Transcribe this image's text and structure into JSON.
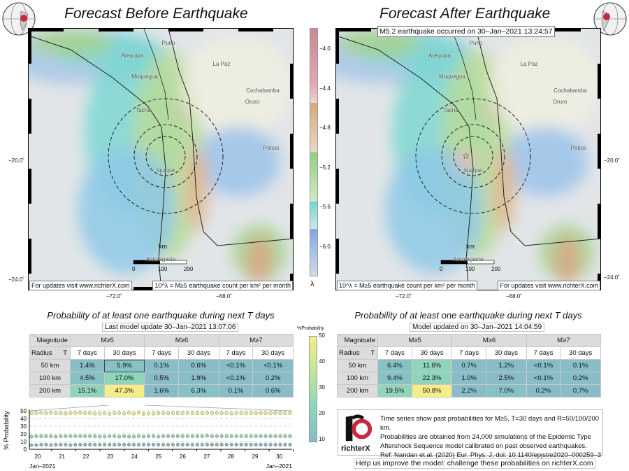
{
  "maps": [
    {
      "title": "Forecast Before Earthquake",
      "footer_left": "For updates visit www.richterX.com",
      "footer_right": "10^λ = M≥5 earthquake count per km² per month",
      "event_label": null,
      "has_star": false
    },
    {
      "title": "Forecast After Earthquake",
      "footer_left": "10^λ = M≥5 earthquake count per km² per month",
      "footer_right": "For updates visit www.richterX.com",
      "event_label": "M5.2 earthquake occurred on 30–Jan–2021 13:24:57",
      "has_star": true
    }
  ],
  "cities": [
    "Puno",
    "Arequipa",
    "La Paz",
    "Moquegua",
    "Cochabamba",
    "Tacna",
    "Oruro",
    "Potosí",
    "Iquique",
    "Antofagasta"
  ],
  "scale": {
    "unit": "km",
    "ticks": [
      "0",
      "100",
      "200"
    ]
  },
  "axes": {
    "lon_ticks": [
      "−72.0˚",
      "−68.0˚"
    ],
    "lat_ticks": [
      "−20.0˚",
      "−24.0˚"
    ]
  },
  "colorbar": {
    "symbol": "λ",
    "ticks": [
      "−4.0",
      "−4.4",
      "−4.8",
      "−5.2",
      "−5.6",
      "−6.0"
    ]
  },
  "prob_colorbar": {
    "title": "%Probability",
    "ticks": [
      "50",
      "40",
      "30",
      "20",
      "10"
    ]
  },
  "tables": [
    {
      "title": "Probability of at least one earthquake during next T days",
      "updated": "Last model update 30–Jan–2021 13:07:06",
      "rows": [
        [
          "50 km",
          "1.4%",
          "5.9%",
          "0.1%",
          "0.6%",
          "<0.1%",
          "<0.1%"
        ],
        [
          "100 km",
          "4.5%",
          "17.0%",
          "0.5%",
          "1.9%",
          "<0.1%",
          "0.2%"
        ],
        [
          "200 km",
          "15.1%",
          "47.3%",
          "1.6%",
          "6.3%",
          "0.1%",
          "0.6%"
        ]
      ]
    },
    {
      "title": "Probability of at least one earthquake during next T days",
      "updated": "Model updated on 30–Jan–2021 14:04:59",
      "rows": [
        [
          "50 km",
          "6.4%",
          "11.6%",
          "0.7%",
          "1.2%",
          "<0.1%",
          "0.1%"
        ],
        [
          "100 km",
          "9.4%",
          "22.3%",
          "1.0%",
          "2.5%",
          "<0.1%",
          "0.2%"
        ],
        [
          "200 km",
          "19.5%",
          "50.8%",
          "2.2%",
          "7.0%",
          "0.2%",
          "0.7%"
        ]
      ]
    }
  ],
  "table_headers": {
    "magnitude": "Magnitude",
    "radius": "Radius",
    "t": "T",
    "mags": [
      "M≥5",
      "M≥6",
      "M≥7"
    ],
    "periods": [
      "7 days",
      "30 days",
      "7 days",
      "30 days",
      "7 days",
      "30 days"
    ]
  },
  "chart_data": {
    "type": "scatter",
    "ylabel": "% Probability",
    "ylim": [
      0,
      50
    ],
    "yticks": [
      "0",
      "10",
      "20",
      "30",
      "40",
      "50"
    ],
    "xticks": [
      "20",
      "21",
      "22",
      "23",
      "24",
      "25",
      "26",
      "27",
      "28",
      "29",
      "30"
    ],
    "xlabel_left": "Jan–2021",
    "xlabel_right": "Jan–2021",
    "series": [
      {
        "name": "R=200 km",
        "color": "#f0ec80",
        "values": [
          47,
          47,
          47.5,
          47,
          47.5,
          47,
          47,
          46.5,
          47,
          47,
          47.5,
          47,
          47,
          46.5,
          46.5,
          47,
          46,
          47,
          47,
          46.5,
          47.5,
          46.5,
          47.5,
          46,
          46.5,
          46.5,
          47,
          47,
          47,
          47,
          47,
          47,
          47,
          47,
          47,
          47,
          47,
          47,
          47,
          47,
          47,
          46.5,
          47,
          47,
          47,
          47,
          47,
          47,
          47,
          47,
          47,
          47,
          47,
          47.3
        ]
      },
      {
        "name": "R=100 km",
        "color": "#8fd4b8",
        "values": [
          16.5,
          17,
          17,
          17,
          17,
          16.5,
          17,
          17,
          17,
          17,
          17,
          17,
          17,
          17,
          16.5,
          16.5,
          17,
          17,
          16.5,
          17,
          16.5,
          16.5,
          17,
          16.5,
          17,
          17,
          16.5,
          17,
          17,
          17,
          17,
          17,
          17,
          17,
          17,
          17,
          17.5,
          17,
          17,
          17,
          17,
          17,
          17,
          17,
          17,
          17,
          17,
          17,
          17,
          17,
          17,
          17,
          17,
          17
        ]
      },
      {
        "name": "R=50 km",
        "color": "#7fbcc0",
        "values": [
          5.5,
          5.5,
          6,
          6,
          5.5,
          6,
          6,
          6,
          5.5,
          6,
          6,
          6,
          6,
          6,
          6,
          6,
          6,
          6,
          6,
          6,
          6,
          6,
          6,
          6,
          6,
          6,
          6,
          6,
          6,
          6,
          6,
          6,
          6,
          6,
          6,
          6,
          6,
          6,
          6,
          6,
          6,
          6,
          6,
          6,
          6,
          6,
          6,
          6,
          6,
          6,
          6,
          6,
          6,
          5.9
        ]
      }
    ]
  },
  "info": {
    "logo_text": "richterX",
    "lines": [
      "Time series show past probabilities for M≥5, T=30 days and R=50/100/200 km.",
      "Probabilities are obtained from 24,000 simulations of the Epidemic Type",
      "Aftershock Sequence model calibrated on past observed earthquakes.",
      "Ref: Nandan et.al. (2020) Eur. Phys. J, doi: 10.1140/epjst/e2020–000259–3"
    ],
    "challenge": "Help us improve the model: challenge these probabilities on richterX.com"
  }
}
